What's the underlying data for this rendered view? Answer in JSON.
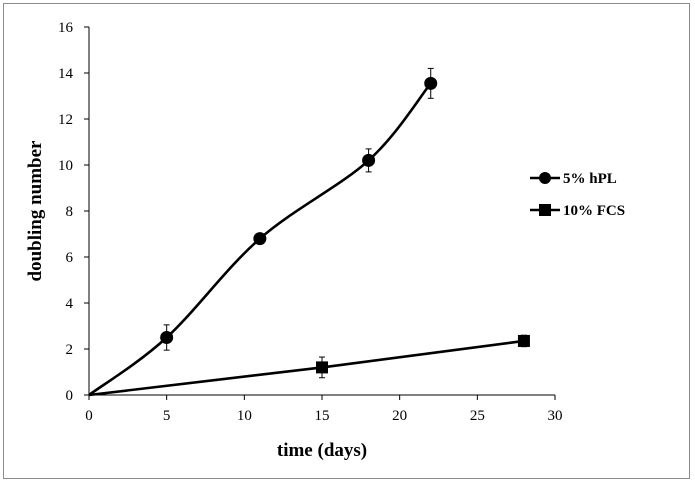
{
  "chart_data": {
    "type": "line",
    "xlabel": "time (days)",
    "ylabel": "doubling number",
    "xlim": [
      0,
      30
    ],
    "ylim": [
      0,
      16
    ],
    "xticks": [
      0,
      5,
      10,
      15,
      20,
      25,
      30
    ],
    "yticks": [
      0,
      2,
      4,
      6,
      8,
      10,
      12,
      14,
      16
    ],
    "grid": false,
    "legend_position": "right",
    "series": [
      {
        "name": "5% hPL",
        "marker": "circle",
        "smooth": true,
        "color": "#000000",
        "points": [
          {
            "x": 0,
            "y": 0,
            "err": 0
          },
          {
            "x": 5,
            "y": 2.5,
            "err": 0.55
          },
          {
            "x": 11,
            "y": 6.8,
            "err": 0
          },
          {
            "x": 18,
            "y": 10.2,
            "err": 0.5
          },
          {
            "x": 22,
            "y": 13.55,
            "err": 0.65
          }
        ]
      },
      {
        "name": "10% FCS",
        "marker": "square",
        "smooth": false,
        "color": "#000000",
        "points": [
          {
            "x": 0,
            "y": 0,
            "err": 0
          },
          {
            "x": 15,
            "y": 1.2,
            "err": 0.45
          },
          {
            "x": 28,
            "y": 2.35,
            "err": 0.25
          }
        ]
      }
    ]
  }
}
